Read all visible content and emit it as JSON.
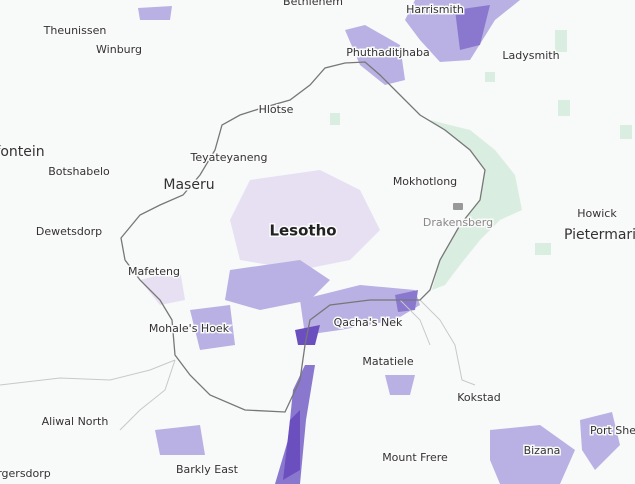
{
  "places": {
    "country": "Lesotho",
    "capital": "Maseru",
    "mountains": "Drakensberg",
    "towns": [
      "Bethlehem",
      "Harrismith",
      "Theunissen",
      "Winburg",
      "Phuthaditjhaba",
      "Ladysmith",
      "Hlotse",
      "fontein",
      "Teyateyaneng",
      "Botshabelo",
      "Mokhotlong",
      "Howick",
      "Pietermari",
      "Dewetsdorp",
      "Mafeteng",
      "Qacha's Nek",
      "Mohale's Hoek",
      "Matatiele",
      "Kokstad",
      "Aliwal North",
      "Port She",
      "Bizana",
      "Mount Frere",
      "Barkly East",
      "rgersdorp"
    ]
  }
}
